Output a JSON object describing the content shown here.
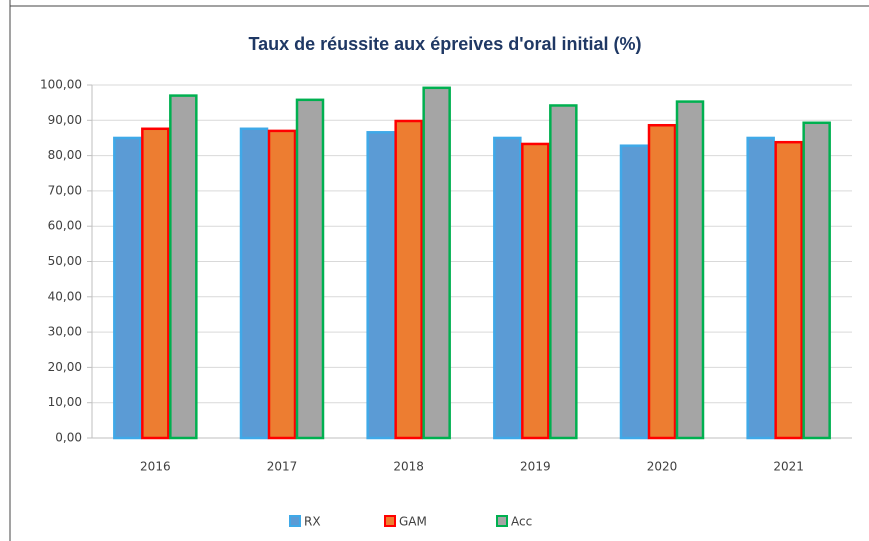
{
  "chart_data": {
    "type": "bar",
    "title": "Taux de réussite aux épreives d'oral initial (%)",
    "categories": [
      "2016",
      "2017",
      "2018",
      "2019",
      "2020",
      "2021"
    ],
    "series": [
      {
        "name": "RX",
        "color": "#5b9bd5",
        "border_color": "#3fa9e8",
        "values": [
          85,
          87.6,
          86.6,
          85,
          82.8,
          85
        ]
      },
      {
        "name": "GAM",
        "color": "#ed7d31",
        "border_color": "#ff0000",
        "values": [
          87.6,
          87,
          89.8,
          83.3,
          88.6,
          83.8
        ]
      },
      {
        "name": "Acc",
        "color": "#a5a5a5",
        "border_color": "#00b050",
        "values": [
          97,
          95.8,
          99.2,
          94.2,
          95.3,
          89.3
        ]
      }
    ],
    "ylim": [
      0,
      100
    ],
    "yticks": [
      {
        "value": 0,
        "label": "0,00"
      },
      {
        "value": 10,
        "label": "10,00"
      },
      {
        "value": 20,
        "label": "20,00"
      },
      {
        "value": 30,
        "label": "30,00"
      },
      {
        "value": 40,
        "label": "40,00"
      },
      {
        "value": 50,
        "label": "50,00"
      },
      {
        "value": 60,
        "label": "60,00"
      },
      {
        "value": 70,
        "label": "70,00"
      },
      {
        "value": 80,
        "label": "80,00"
      },
      {
        "value": 90,
        "label": "90,00"
      },
      {
        "value": 100,
        "label": "100,00"
      }
    ],
    "grid": true,
    "legend": "bottom"
  }
}
